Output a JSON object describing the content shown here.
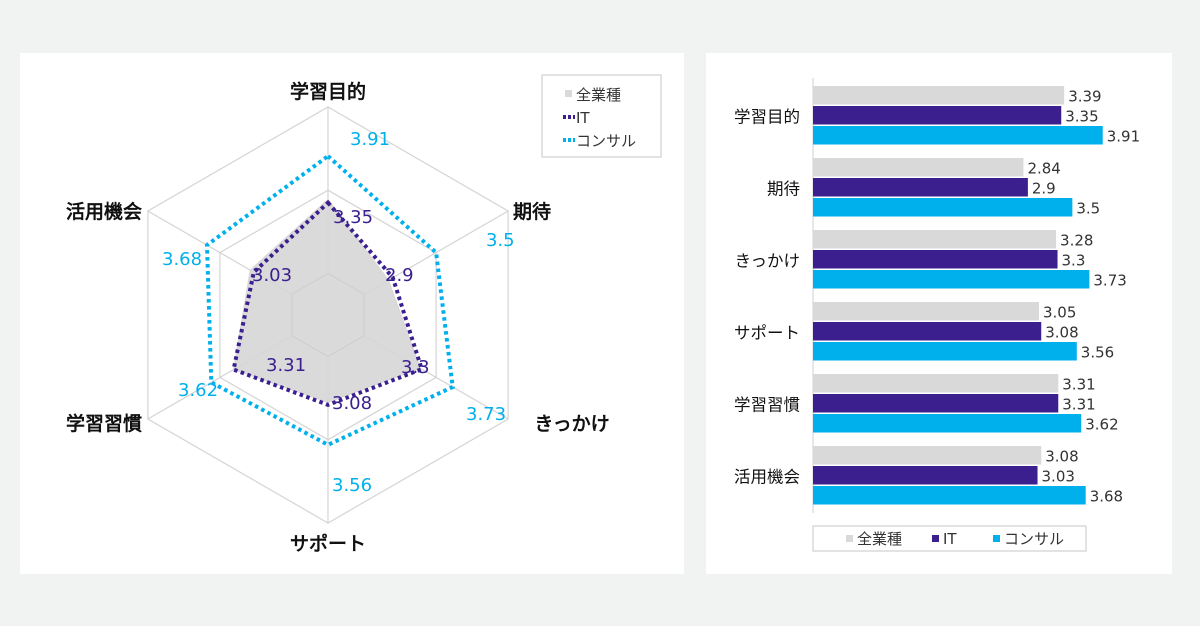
{
  "colors": {
    "all": "#d9d9d9",
    "it": "#3b1f8f",
    "consul": "#00b0ec",
    "grid": "#d4d4d4",
    "radar_fill": "#d6d6d6"
  },
  "chart_data": [
    {
      "type": "radar",
      "axes": [
        "学習目的",
        "期待",
        "きっかけ",
        "サポート",
        "学習習慣",
        "活用機会"
      ],
      "series": [
        {
          "name": "全業種",
          "values": [
            3.39,
            2.84,
            3.28,
            3.05,
            3.31,
            3.08
          ],
          "style": "filled"
        },
        {
          "name": "IT",
          "values": [
            3.35,
            2.9,
            3.3,
            3.08,
            3.31,
            3.03
          ],
          "style": "dotted",
          "labels": [
            "3.35",
            "2.9",
            "3.3",
            "3.08",
            "3.31",
            "3.03"
          ]
        },
        {
          "name": "コンサル",
          "values": [
            3.91,
            3.5,
            3.73,
            3.56,
            3.62,
            3.68
          ],
          "style": "dotted",
          "labels": [
            "3.91",
            "3.5",
            "3.73",
            "3.56",
            "3.62",
            "3.68"
          ]
        }
      ],
      "legend": {
        "position": "top-right",
        "entries": [
          "全業種",
          "IT",
          "コンサル"
        ]
      },
      "grid": true
    },
    {
      "type": "bar",
      "orientation": "horizontal",
      "categories": [
        "学習目的",
        "期待",
        "きっかけ",
        "サポート",
        "学習習慣",
        "活用機会"
      ],
      "series": [
        {
          "name": "全業種",
          "values": [
            3.39,
            2.84,
            3.28,
            3.05,
            3.31,
            3.08
          ],
          "labels": [
            "3.39",
            "2.84",
            "3.28",
            "3.05",
            "3.31",
            "3.08"
          ]
        },
        {
          "name": "IT",
          "values": [
            3.35,
            2.9,
            3.3,
            3.08,
            3.31,
            3.03
          ],
          "labels": [
            "3.35",
            "2.9",
            "3.3",
            "3.08",
            "3.31",
            "3.03"
          ]
        },
        {
          "name": "コンサル",
          "values": [
            3.91,
            3.5,
            3.73,
            3.56,
            3.62,
            3.68
          ],
          "labels": [
            "3.91",
            "3.5",
            "3.73",
            "3.56",
            "3.62",
            "3.68"
          ]
        }
      ],
      "legend": {
        "position": "bottom",
        "entries": [
          "全業種",
          "IT",
          "コンサル"
        ]
      },
      "grid": false
    }
  ]
}
